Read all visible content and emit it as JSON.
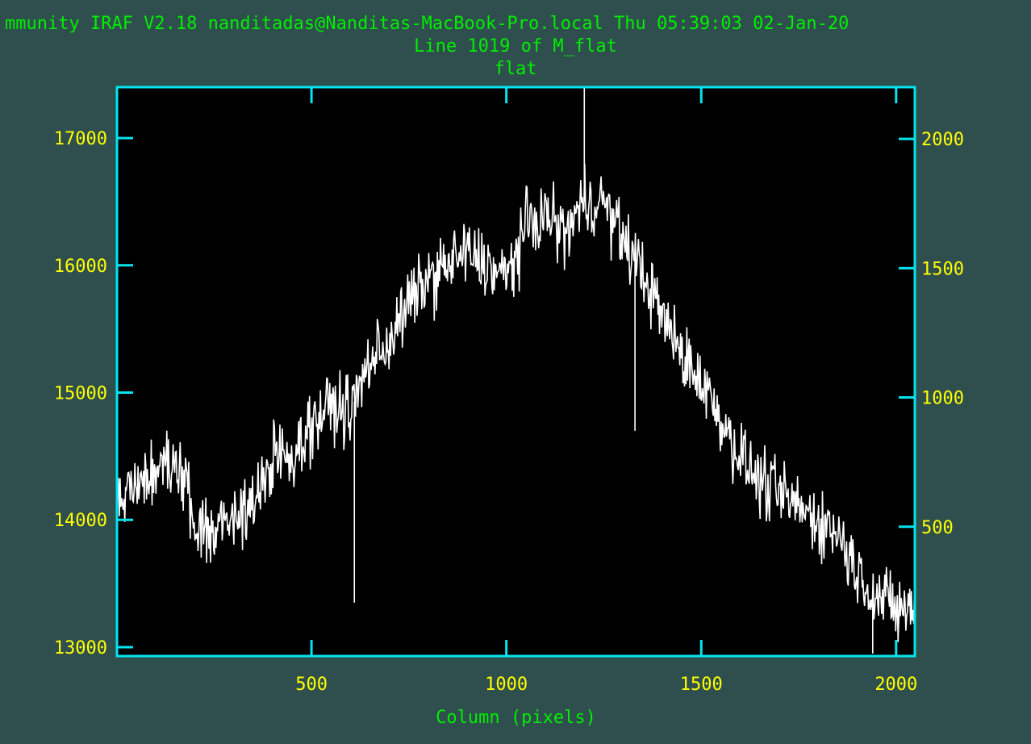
{
  "window": {
    "system_line": "mmunity IRAF V2.18 nanditadas@Nanditas-MacBook-Pro.local Thu 05:39:03 02-Jan-20",
    "line_info": "Line 1019 of M_flat",
    "plot_title": "flat"
  },
  "colors": {
    "background": "#2f4f4f",
    "plot_area": "#000000",
    "axes": "#00e5ee",
    "tick_labels": "#ffff00",
    "header_text": "#00ee00",
    "data_line": "#ffffff"
  },
  "chart_data": {
    "type": "line",
    "title": "flat",
    "xlabel": "Column (pixels)",
    "ylabel": "",
    "xlim": [
      1,
      2048
    ],
    "ylim": [
      12930,
      17400
    ],
    "right_axis_ylim": [
      0,
      2200
    ],
    "x_ticks": [
      500,
      1000,
      1500,
      2000
    ],
    "y_ticks": [
      13000,
      14000,
      15000,
      16000,
      17000
    ],
    "right_y_ticks": [
      500,
      1000,
      1500,
      2000
    ],
    "series": [
      {
        "x": [
          1,
          50,
          100,
          150,
          200,
          250,
          300,
          350,
          400,
          450,
          500,
          550,
          600,
          650,
          700,
          750,
          800,
          850,
          900,
          950,
          1000,
          1050,
          1100,
          1150,
          1200,
          1250,
          1300,
          1350,
          1400,
          1450,
          1500,
          1550,
          1600,
          1650,
          1700,
          1750,
          1800,
          1850,
          1900,
          1950,
          2000,
          2048
        ],
        "y": [
          14200,
          14200,
          14350,
          14500,
          13950,
          13900,
          14050,
          14100,
          14500,
          14500,
          14750,
          14900,
          14850,
          15250,
          15400,
          15700,
          15900,
          16000,
          16100,
          16000,
          15900,
          16300,
          16400,
          16250,
          16500,
          16500,
          16200,
          15950,
          15600,
          15300,
          15100,
          14800,
          14500,
          14300,
          14200,
          14100,
          14000,
          13900,
          13600,
          13400,
          13300,
          13300
        ]
      }
    ],
    "spikes": [
      {
        "x": 610,
        "y": 13350
      },
      {
        "x": 1200,
        "y": 17400
      },
      {
        "x": 1330,
        "y": 14700
      },
      {
        "x": 1940,
        "y": 12950
      }
    ]
  }
}
